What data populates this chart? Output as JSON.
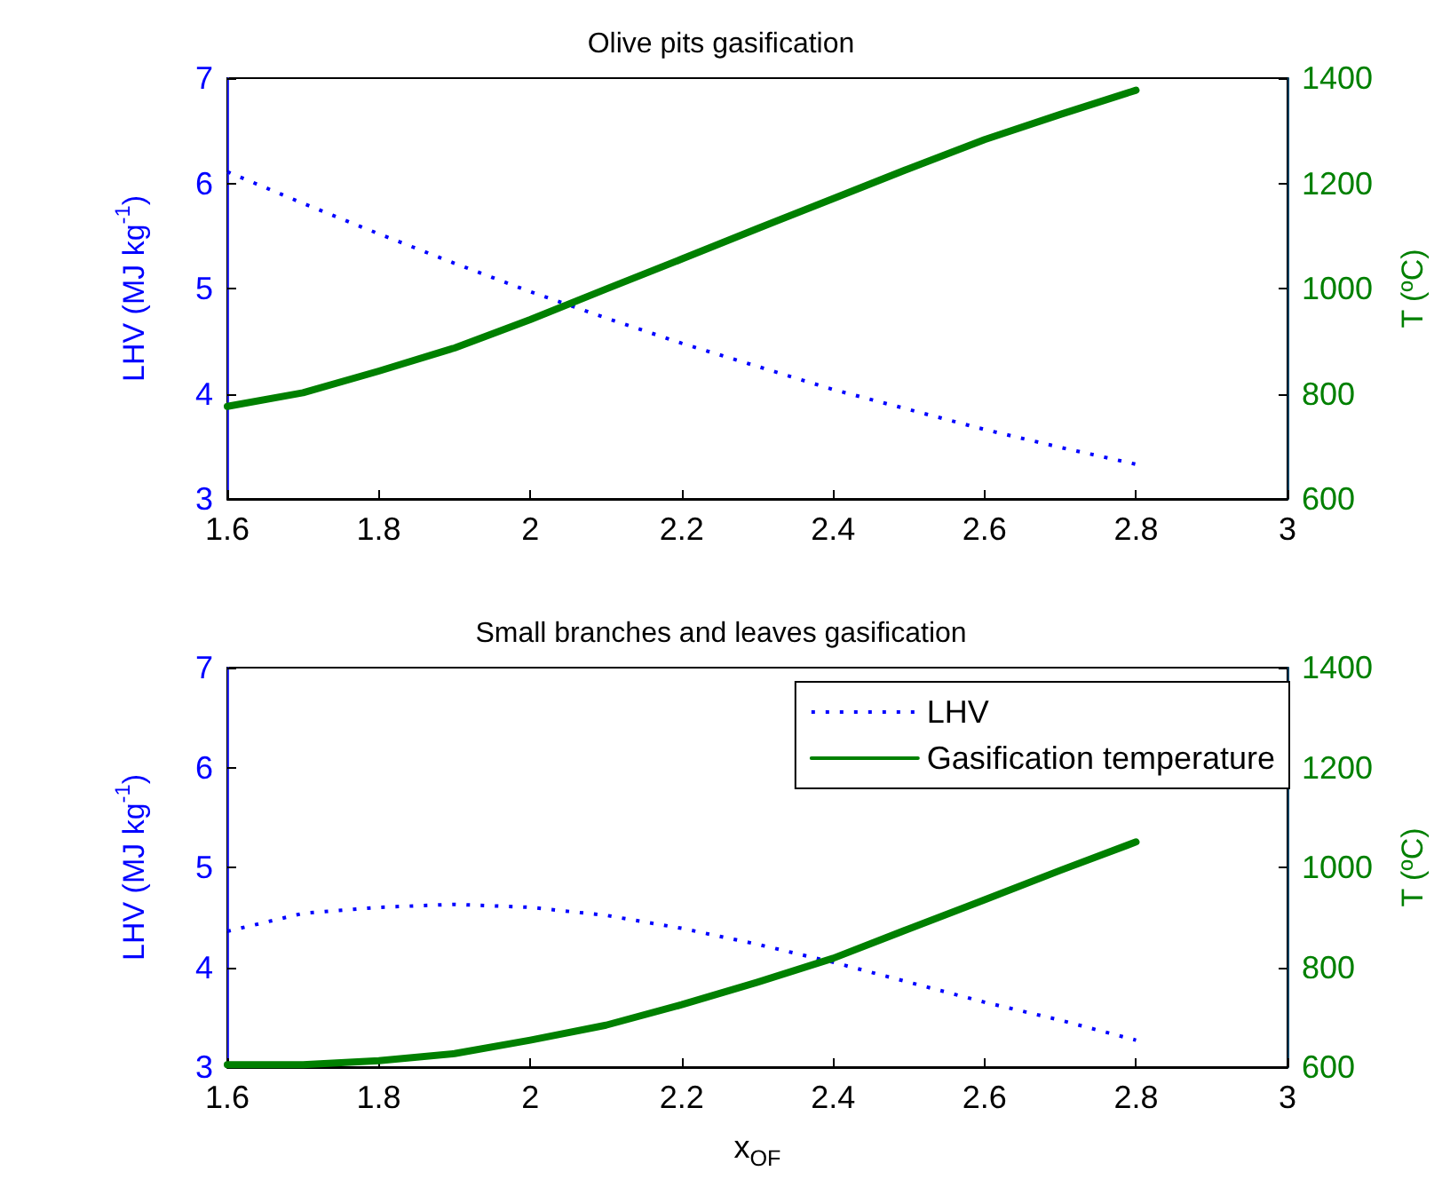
{
  "chart_data": [
    {
      "type": "line",
      "title": "Olive pits gasification",
      "ylabel": "LHV (MJ kg$^{-1}$)",
      "y2label": "T (ºC)",
      "x": [
        1.6,
        1.7,
        1.8,
        1.9,
        2.0,
        2.1,
        2.2,
        2.3,
        2.4,
        2.5,
        2.6,
        2.7,
        2.8
      ],
      "series": [
        {
          "color": "#0000ff",
          "line_style": "dotted",
          "values": [
            6.11,
            5.81,
            5.52,
            5.24,
            4.97,
            4.72,
            4.48,
            4.26,
            4.04,
            3.85,
            3.66,
            3.49,
            3.33
          ]
        },
        {
          "color": "#008000",
          "line_style": "solid",
          "axis": "y2",
          "values": [
            776,
            802,
            843,
            887,
            941,
            999,
            1056,
            1114,
            1171,
            1228,
            1283,
            1331,
            1377
          ]
        }
      ],
      "xlim": [
        1.6,
        3
      ],
      "xticks": [
        1.6,
        1.8,
        2,
        2.2,
        2.4,
        2.6,
        2.8,
        3
      ],
      "ylim": [
        3,
        7
      ],
      "yticks": [
        3,
        4,
        5,
        6,
        7
      ],
      "y2lim": [
        600,
        1400
      ],
      "y2ticks": [
        600,
        800,
        1000,
        1200,
        1400
      ]
    },
    {
      "type": "line",
      "title": "Small branches and leaves gasification",
      "xlabel": "x$_{OF}$",
      "ylabel": "LHV (MJ kg$^{-1}$)",
      "y2label": "T (ºC)",
      "x": [
        1.6,
        1.7,
        1.8,
        1.9,
        2.0,
        2.1,
        2.2,
        2.3,
        2.4,
        2.5,
        2.6,
        2.7,
        2.8
      ],
      "series": [
        {
          "name": "LHV",
          "color": "#0000ff",
          "line_style": "dotted",
          "values": [
            4.36,
            4.54,
            4.6,
            4.63,
            4.6,
            4.52,
            4.39,
            4.23,
            4.05,
            3.85,
            3.65,
            3.47,
            3.27
          ]
        },
        {
          "name": "Gasification temperature",
          "color": "#008000",
          "line_style": "solid",
          "axis": "y2",
          "values": [
            605,
            605,
            613,
            627,
            654,
            684,
            725,
            770,
            818,
            877,
            935,
            994,
            1051
          ]
        }
      ],
      "xlim": [
        1.6,
        3
      ],
      "xticks": [
        1.6,
        1.8,
        2,
        2.2,
        2.4,
        2.6,
        2.8,
        3
      ],
      "ylim": [
        3,
        7
      ],
      "yticks": [
        3,
        4,
        5,
        6,
        7
      ],
      "y2lim": [
        600,
        1400
      ],
      "y2ticks": [
        600,
        800,
        1000,
        1200,
        1400
      ],
      "legend": "top right"
    }
  ]
}
